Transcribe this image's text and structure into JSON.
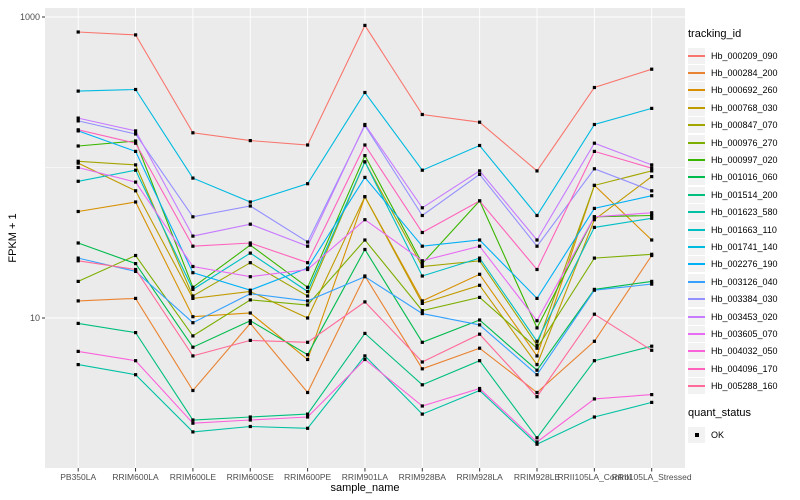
{
  "figure": {
    "bg": "#FFFFFF",
    "panel_bg": "#EBEBEB",
    "grid_color": "#FFFFFF",
    "tick_color": "#333333",
    "tick_label_color": "#4D4D4D",
    "point_color": "#000000"
  },
  "axes": {
    "x_title": "sample_name",
    "y_title": "FPKM + 1",
    "y_tick_labels": [
      "1000",
      "10"
    ],
    "y_tick_values": [
      1000,
      10
    ],
    "y_minor_values": [
      100
    ]
  },
  "legend": {
    "tracking_title": "tracking_id",
    "quant_title": "quant_status",
    "quant_items": [
      {
        "label": "OK",
        "marker": "square",
        "color": "#000000"
      }
    ]
  },
  "chart_data": {
    "type": "line",
    "x_scale": "discrete",
    "y_scale": "log10",
    "ylim": [
      1,
      1150
    ],
    "grid": true,
    "legend_position": "right",
    "title": "",
    "xlabel": "sample_name",
    "ylabel": "FPKM + 1",
    "categories": [
      "PB350LA",
      "RRIM600LA",
      "RRIM600LE",
      "RRIM600SE",
      "RRIM600PE",
      "RRIM901LA",
      "RRIM928BA",
      "RRIM928LA",
      "RRIM928LE",
      "RRII105LA_Control",
      "RRII105LA_Stressed"
    ],
    "series": [
      {
        "name": "Hb_000209_090",
        "color": "#F8766D",
        "values": [
          795,
          760,
          170,
          151,
          141,
          880,
          225,
          200,
          95,
          340,
          450
        ]
      },
      {
        "name": "Hb_000284_200",
        "color": "#EA8331",
        "values": [
          13,
          13.5,
          3.3,
          9.2,
          3.2,
          19,
          4.6,
          6.3,
          3.2,
          7,
          26
        ]
      },
      {
        "name": "Hb_000692_260",
        "color": "#D89000",
        "values": [
          51,
          59,
          10.2,
          10.8,
          5.3,
          64,
          13,
          19.5,
          5.6,
          76,
          33
        ]
      },
      {
        "name": "Hb_000768_030",
        "color": "#C09B00",
        "values": [
          107,
          70,
          13.5,
          15,
          10,
          64,
          12.5,
          16.5,
          4.9,
          45,
          87
        ]
      },
      {
        "name": "Hb_000847_070",
        "color": "#A3A500",
        "values": [
          110,
          104,
          14,
          23.3,
          14,
          109,
          22,
          24,
          6.6,
          76,
          95
        ]
      },
      {
        "name": "Hb_000976_270",
        "color": "#7CAE00",
        "values": [
          17.5,
          26,
          7.6,
          13.2,
          12.2,
          33,
          11.2,
          13.7,
          6.3,
          25,
          26.5
        ]
      },
      {
        "name": "Hb_000997_020",
        "color": "#39B600",
        "values": [
          139,
          150,
          16,
          30.5,
          16,
          120,
          23,
          60,
          8.6,
          47,
          48
        ]
      },
      {
        "name": "Hb_001016_060",
        "color": "#00BB4E",
        "values": [
          31.5,
          23,
          6.4,
          9.6,
          5.7,
          28.5,
          6.9,
          9.7,
          4.5,
          15.5,
          17.5
        ]
      },
      {
        "name": "Hb_001514_200",
        "color": "#00BF7D",
        "values": [
          9.2,
          8,
          2.1,
          2.2,
          2.3,
          7.9,
          3.6,
          5.2,
          1.6,
          5.2,
          6.5
        ]
      },
      {
        "name": "Hb_001623_580",
        "color": "#00C1A3",
        "values": [
          4.9,
          4.2,
          1.75,
          1.9,
          1.85,
          5.6,
          2.3,
          3.3,
          1.45,
          2.2,
          2.75
        ]
      },
      {
        "name": "Hb_001663_110",
        "color": "#00BFC4",
        "values": [
          81,
          96,
          15.5,
          27,
          15,
          109,
          19,
          25,
          7,
          40,
          46
        ]
      },
      {
        "name": "Hb_001741_140",
        "color": "#00BAE0",
        "values": [
          322,
          330,
          85,
          59,
          78,
          315,
          96,
          140,
          48,
          193,
          247
        ]
      },
      {
        "name": "Hb_002276_190",
        "color": "#00B0F6",
        "values": [
          175,
          128,
          20,
          15.3,
          21.5,
          86,
          30,
          33,
          13.5,
          53.5,
          65
        ]
      },
      {
        "name": "Hb_003126_040",
        "color": "#35A2FF",
        "values": [
          25,
          20.4,
          9.3,
          14.5,
          13,
          18.8,
          10.7,
          9,
          4.2,
          15.3,
          16.8
        ]
      },
      {
        "name": "Hb_003384_030",
        "color": "#9590FF",
        "values": [
          204,
          167,
          47,
          55.5,
          32,
          190,
          48,
          90,
          30,
          98,
          70
        ]
      },
      {
        "name": "Hb_003453_020",
        "color": "#C77CFF",
        "values": [
          213,
          175,
          35,
          42,
          30,
          193,
          54,
          95,
          33,
          145,
          104
        ]
      },
      {
        "name": "Hb_003605_070",
        "color": "#E76BF3",
        "values": [
          100,
          80,
          22,
          18.8,
          21,
          45,
          24,
          30,
          9.6,
          47,
          50
        ]
      },
      {
        "name": "Hb_004032_050",
        "color": "#FA62DB",
        "values": [
          6,
          5.2,
          2,
          2.1,
          2.2,
          5.3,
          2.6,
          3.4,
          1.5,
          2.9,
          3.1
        ]
      },
      {
        "name": "Hb_004096_170",
        "color": "#FF62BC",
        "values": [
          178,
          145,
          30,
          31.5,
          23.3,
          141,
          37,
          60,
          21,
          128,
          99
        ]
      },
      {
        "name": "Hb_005288_160",
        "color": "#FF6A98",
        "values": [
          24,
          21,
          5.6,
          7.1,
          6.9,
          12.8,
          5.1,
          7.8,
          3,
          10.6,
          6.1
        ]
      }
    ]
  }
}
